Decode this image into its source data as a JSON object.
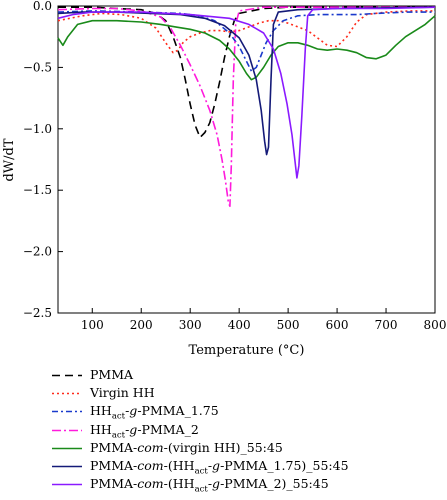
{
  "chart_data": {
    "type": "line",
    "xlabel": "Temperature (°C)",
    "ylabel": "dW/dT",
    "xlim": [
      30,
      800
    ],
    "ylim": [
      -2.5,
      0
    ],
    "x_ticks": [
      "100",
      "200",
      "300",
      "400",
      "500",
      "600",
      "700",
      "800"
    ],
    "y_ticks": [
      "0.0",
      "−0.5",
      "−1.0",
      "−1.5",
      "−2.0",
      "−2.5"
    ],
    "grid": false,
    "legend_position": "below",
    "series": [
      {
        "name": "PMMA",
        "sub_parts": [
          "PMMA"
        ],
        "color": "#000000",
        "dash": "8,5",
        "points": [
          [
            30,
            -0.01
          ],
          [
            100,
            -0.01
          ],
          [
            150,
            -0.02
          ],
          [
            200,
            -0.03
          ],
          [
            230,
            -0.06
          ],
          [
            250,
            -0.12
          ],
          [
            265,
            -0.25
          ],
          [
            280,
            -0.42
          ],
          [
            290,
            -0.6
          ],
          [
            300,
            -0.8
          ],
          [
            310,
            -0.97
          ],
          [
            320,
            -1.07
          ],
          [
            330,
            -1.03
          ],
          [
            340,
            -0.95
          ],
          [
            350,
            -0.8
          ],
          [
            360,
            -0.62
          ],
          [
            370,
            -0.42
          ],
          [
            380,
            -0.25
          ],
          [
            390,
            -0.12
          ],
          [
            400,
            -0.06
          ],
          [
            450,
            -0.02
          ],
          [
            500,
            -0.01
          ],
          [
            800,
            -0.01
          ]
        ]
      },
      {
        "name": "Virgin HH",
        "sub_parts": [
          "Virgin HH"
        ],
        "color": "#ff2a1a",
        "dash": "2,3",
        "points": [
          [
            30,
            -0.12
          ],
          [
            80,
            -0.08
          ],
          [
            120,
            -0.06
          ],
          [
            160,
            -0.07
          ],
          [
            200,
            -0.1
          ],
          [
            230,
            -0.18
          ],
          [
            250,
            -0.3
          ],
          [
            265,
            -0.38
          ],
          [
            275,
            -0.36
          ],
          [
            285,
            -0.3
          ],
          [
            300,
            -0.25
          ],
          [
            320,
            -0.22
          ],
          [
            340,
            -0.2
          ],
          [
            360,
            -0.2
          ],
          [
            380,
            -0.21
          ],
          [
            400,
            -0.2
          ],
          [
            420,
            -0.17
          ],
          [
            440,
            -0.14
          ],
          [
            460,
            -0.12
          ],
          [
            480,
            -0.12
          ],
          [
            500,
            -0.14
          ],
          [
            520,
            -0.17
          ],
          [
            540,
            -0.2
          ],
          [
            560,
            -0.26
          ],
          [
            580,
            -0.32
          ],
          [
            600,
            -0.33
          ],
          [
            620,
            -0.25
          ],
          [
            640,
            -0.13
          ],
          [
            660,
            -0.07
          ],
          [
            700,
            -0.05
          ],
          [
            750,
            -0.04
          ],
          [
            800,
            -0.04
          ]
        ]
      },
      {
        "name": "HH_act-g-PMMA_1.75",
        "sub_parts": [
          "HH",
          "act",
          "-",
          "g",
          "-PMMA_1.75"
        ],
        "color": "#1a3acc",
        "dash": "6,3,2,3",
        "points": [
          [
            30,
            -0.05
          ],
          [
            100,
            -0.04
          ],
          [
            200,
            -0.05
          ],
          [
            280,
            -0.06
          ],
          [
            320,
            -0.08
          ],
          [
            350,
            -0.12
          ],
          [
            380,
            -0.22
          ],
          [
            400,
            -0.33
          ],
          [
            415,
            -0.45
          ],
          [
            425,
            -0.53
          ],
          [
            435,
            -0.5
          ],
          [
            445,
            -0.4
          ],
          [
            455,
            -0.3
          ],
          [
            470,
            -0.2
          ],
          [
            490,
            -0.12
          ],
          [
            520,
            -0.08
          ],
          [
            560,
            -0.07
          ],
          [
            600,
            -0.07
          ],
          [
            640,
            -0.07
          ],
          [
            680,
            -0.06
          ],
          [
            740,
            -0.05
          ],
          [
            800,
            -0.05
          ]
        ]
      },
      {
        "name": "HH_act-g-PMMA_2",
        "sub_parts": [
          "HH",
          "act",
          "-",
          "g",
          "-PMMA_2"
        ],
        "color": "#ff1adc",
        "dash": "9,3,2,3",
        "points": [
          [
            30,
            -0.03
          ],
          [
            100,
            -0.02
          ],
          [
            150,
            -0.02
          ],
          [
            200,
            -0.04
          ],
          [
            240,
            -0.09
          ],
          [
            260,
            -0.18
          ],
          [
            280,
            -0.32
          ],
          [
            300,
            -0.48
          ],
          [
            320,
            -0.65
          ],
          [
            340,
            -0.85
          ],
          [
            355,
            -1.05
          ],
          [
            365,
            -1.25
          ],
          [
            372,
            -1.42
          ],
          [
            378,
            -1.6
          ],
          [
            381,
            -1.63
          ],
          [
            384,
            -1.3
          ],
          [
            388,
            -0.6
          ],
          [
            393,
            -0.15
          ],
          [
            400,
            -0.04
          ],
          [
            450,
            -0.01
          ],
          [
            800,
            -0.01
          ]
        ]
      },
      {
        "name": "PMMA-com-(virgin HH)_55:45",
        "sub_parts": [
          "PMMA-",
          "com",
          "-(virgin HH)_55:45"
        ],
        "color": "#1a8a1a",
        "dash": "",
        "points": [
          [
            30,
            -0.26
          ],
          [
            40,
            -0.32
          ],
          [
            50,
            -0.25
          ],
          [
            70,
            -0.15
          ],
          [
            100,
            -0.12
          ],
          [
            150,
            -0.12
          ],
          [
            200,
            -0.13
          ],
          [
            240,
            -0.15
          ],
          [
            270,
            -0.17
          ],
          [
            300,
            -0.19
          ],
          [
            330,
            -0.22
          ],
          [
            360,
            -0.28
          ],
          [
            380,
            -0.35
          ],
          [
            400,
            -0.45
          ],
          [
            415,
            -0.55
          ],
          [
            425,
            -0.6
          ],
          [
            435,
            -0.58
          ],
          [
            450,
            -0.5
          ],
          [
            465,
            -0.4
          ],
          [
            480,
            -0.33
          ],
          [
            500,
            -0.3
          ],
          [
            520,
            -0.3
          ],
          [
            540,
            -0.32
          ],
          [
            560,
            -0.35
          ],
          [
            580,
            -0.36
          ],
          [
            600,
            -0.35
          ],
          [
            620,
            -0.36
          ],
          [
            640,
            -0.38
          ],
          [
            660,
            -0.42
          ],
          [
            680,
            -0.43
          ],
          [
            700,
            -0.4
          ],
          [
            720,
            -0.32
          ],
          [
            740,
            -0.25
          ],
          [
            760,
            -0.2
          ],
          [
            780,
            -0.15
          ],
          [
            800,
            -0.08
          ]
        ]
      },
      {
        "name": "PMMA-com-(HH_act-g-PMMA_1.75)_55:45",
        "sub_parts": [
          "PMMA-",
          "com",
          "-(HH",
          "act",
          "-",
          "g",
          "-PMMA_1.75)_55:45"
        ],
        "color": "#141a78",
        "dash": "",
        "points": [
          [
            30,
            -0.06
          ],
          [
            80,
            -0.05
          ],
          [
            150,
            -0.05
          ],
          [
            220,
            -0.06
          ],
          [
            280,
            -0.07
          ],
          [
            330,
            -0.1
          ],
          [
            370,
            -0.16
          ],
          [
            400,
            -0.26
          ],
          [
            420,
            -0.4
          ],
          [
            435,
            -0.6
          ],
          [
            445,
            -0.85
          ],
          [
            452,
            -1.1
          ],
          [
            456,
            -1.21
          ],
          [
            460,
            -1.15
          ],
          [
            465,
            -0.6
          ],
          [
            470,
            -0.15
          ],
          [
            480,
            -0.05
          ],
          [
            520,
            -0.03
          ],
          [
            600,
            -0.02
          ],
          [
            800,
            -0.01
          ]
        ]
      },
      {
        "name": "PMMA-com-(HH_act-g-PMMA_2)_55:45",
        "sub_parts": [
          "PMMA-",
          "com",
          "-(HH",
          "act",
          "-",
          "g",
          "-PMMA_2)_55:45"
        ],
        "color": "#8a1aff",
        "dash": "",
        "points": [
          [
            30,
            -0.1
          ],
          [
            60,
            -0.07
          ],
          [
            100,
            -0.05
          ],
          [
            200,
            -0.05
          ],
          [
            300,
            -0.07
          ],
          [
            380,
            -0.1
          ],
          [
            420,
            -0.15
          ],
          [
            450,
            -0.22
          ],
          [
            470,
            -0.35
          ],
          [
            485,
            -0.55
          ],
          [
            498,
            -0.8
          ],
          [
            508,
            -1.05
          ],
          [
            515,
            -1.3
          ],
          [
            518,
            -1.4
          ],
          [
            522,
            -1.3
          ],
          [
            528,
            -0.9
          ],
          [
            535,
            -0.35
          ],
          [
            540,
            -0.08
          ],
          [
            550,
            -0.03
          ],
          [
            600,
            -0.02
          ],
          [
            700,
            -0.02
          ],
          [
            800,
            -0.01
          ]
        ]
      }
    ]
  }
}
